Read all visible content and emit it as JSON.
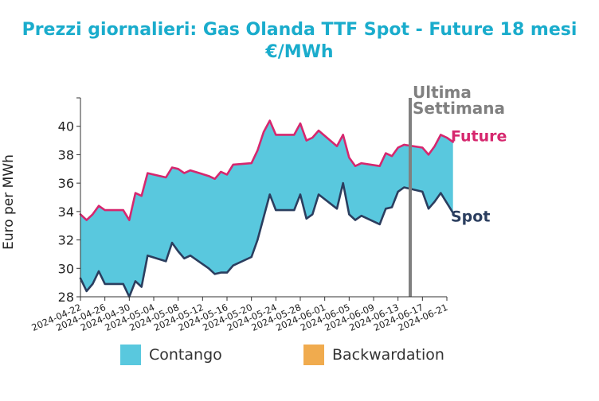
{
  "title_line1": "Prezzi giornalieri: Gas Olanda TTF Spot - Future 18 mesi",
  "title_line2": "€/MWh",
  "chart_data": {
    "type": "line",
    "title": "Prezzi giornalieri: Gas Olanda TTF Spot - Future 18 mesi",
    "subtitle": "€/MWh",
    "xlabel": "",
    "ylabel": "Euro per MWh",
    "ylim": [
      28,
      42
    ],
    "yticks": [
      28,
      30,
      32,
      34,
      36,
      38,
      40
    ],
    "xticks": [
      "2024-04-22",
      "2024-04-26",
      "2024-04-30",
      "2024-05-04",
      "2024-05-08",
      "2024-05-12",
      "2024-05-16",
      "2024-05-20",
      "2024-05-24",
      "2024-05-28",
      "2024-06-01",
      "2024-06-05",
      "2024-06-09",
      "2024-06-13",
      "2024-06-17",
      "2024-06-21"
    ],
    "xlim": [
      "2024-04-22",
      "2024-06-21"
    ],
    "grid": false,
    "vline": {
      "date": "2024-06-15",
      "label_line1": "Ultima",
      "label_line2": "Settimana",
      "color": "#808080"
    },
    "fill": {
      "contango_color": "#59c8de",
      "backwardation_color": "#f0ab4e"
    },
    "legend": [
      {
        "label": "Contango",
        "color": "#59c8de"
      },
      {
        "label": "Backwardation",
        "color": "#f0ab4e"
      }
    ],
    "series": [
      {
        "name": "Future",
        "color": "#d6276e",
        "points": [
          [
            "2024-04-22",
            33.8
          ],
          [
            "2024-04-23",
            33.4
          ],
          [
            "2024-04-24",
            33.8
          ],
          [
            "2024-04-25",
            34.4
          ],
          [
            "2024-04-26",
            34.1
          ],
          [
            "2024-04-29",
            34.1
          ],
          [
            "2024-04-30",
            33.4
          ],
          [
            "2024-05-01",
            35.3
          ],
          [
            "2024-05-02",
            35.1
          ],
          [
            "2024-05-03",
            36.7
          ],
          [
            "2024-05-06",
            36.4
          ],
          [
            "2024-05-07",
            37.1
          ],
          [
            "2024-05-08",
            37.0
          ],
          [
            "2024-05-09",
            36.7
          ],
          [
            "2024-05-10",
            36.9
          ],
          [
            "2024-05-13",
            36.5
          ],
          [
            "2024-05-14",
            36.3
          ],
          [
            "2024-05-15",
            36.8
          ],
          [
            "2024-05-16",
            36.6
          ],
          [
            "2024-05-17",
            37.3
          ],
          [
            "2024-05-20",
            37.4
          ],
          [
            "2024-05-21",
            38.3
          ],
          [
            "2024-05-22",
            39.6
          ],
          [
            "2024-05-23",
            40.4
          ],
          [
            "2024-05-24",
            39.4
          ],
          [
            "2024-05-27",
            39.4
          ],
          [
            "2024-05-28",
            40.2
          ],
          [
            "2024-05-29",
            39.0
          ],
          [
            "2024-05-30",
            39.2
          ],
          [
            "2024-05-31",
            39.7
          ],
          [
            "2024-06-03",
            38.6
          ],
          [
            "2024-06-04",
            39.4
          ],
          [
            "2024-06-05",
            37.8
          ],
          [
            "2024-06-06",
            37.2
          ],
          [
            "2024-06-07",
            37.4
          ],
          [
            "2024-06-10",
            37.2
          ],
          [
            "2024-06-11",
            38.1
          ],
          [
            "2024-06-12",
            37.9
          ],
          [
            "2024-06-13",
            38.5
          ],
          [
            "2024-06-14",
            38.7
          ],
          [
            "2024-06-17",
            38.5
          ],
          [
            "2024-06-18",
            38.0
          ],
          [
            "2024-06-19",
            38.6
          ],
          [
            "2024-06-20",
            39.4
          ],
          [
            "2024-06-21",
            39.2
          ],
          [
            "2024-06-22",
            38.9
          ]
        ]
      },
      {
        "name": "Spot",
        "color": "#2b3e5f",
        "points": [
          [
            "2024-04-22",
            29.3
          ],
          [
            "2024-04-23",
            28.4
          ],
          [
            "2024-04-24",
            28.9
          ],
          [
            "2024-04-25",
            29.8
          ],
          [
            "2024-04-26",
            28.9
          ],
          [
            "2024-04-29",
            28.9
          ],
          [
            "2024-04-30",
            28.0
          ],
          [
            "2024-05-01",
            29.1
          ],
          [
            "2024-05-02",
            28.7
          ],
          [
            "2024-05-03",
            30.9
          ],
          [
            "2024-05-06",
            30.5
          ],
          [
            "2024-05-07",
            31.8
          ],
          [
            "2024-05-08",
            31.2
          ],
          [
            "2024-05-09",
            30.7
          ],
          [
            "2024-05-10",
            30.9
          ],
          [
            "2024-05-13",
            30.0
          ],
          [
            "2024-05-14",
            29.6
          ],
          [
            "2024-05-15",
            29.7
          ],
          [
            "2024-05-16",
            29.7
          ],
          [
            "2024-05-17",
            30.2
          ],
          [
            "2024-05-20",
            30.8
          ],
          [
            "2024-05-21",
            32.0
          ],
          [
            "2024-05-22",
            33.6
          ],
          [
            "2024-05-23",
            35.2
          ],
          [
            "2024-05-24",
            34.1
          ],
          [
            "2024-05-27",
            34.1
          ],
          [
            "2024-05-28",
            35.2
          ],
          [
            "2024-05-29",
            33.5
          ],
          [
            "2024-05-30",
            33.8
          ],
          [
            "2024-05-31",
            35.2
          ],
          [
            "2024-06-03",
            34.2
          ],
          [
            "2024-06-04",
            36.0
          ],
          [
            "2024-06-05",
            33.8
          ],
          [
            "2024-06-06",
            33.4
          ],
          [
            "2024-06-07",
            33.7
          ],
          [
            "2024-06-10",
            33.1
          ],
          [
            "2024-06-11",
            34.2
          ],
          [
            "2024-06-12",
            34.3
          ],
          [
            "2024-06-13",
            35.4
          ],
          [
            "2024-06-14",
            35.7
          ],
          [
            "2024-06-17",
            35.4
          ],
          [
            "2024-06-18",
            34.2
          ],
          [
            "2024-06-19",
            34.7
          ],
          [
            "2024-06-20",
            35.3
          ],
          [
            "2024-06-21",
            34.6
          ],
          [
            "2024-06-22",
            33.9
          ]
        ]
      }
    ]
  }
}
